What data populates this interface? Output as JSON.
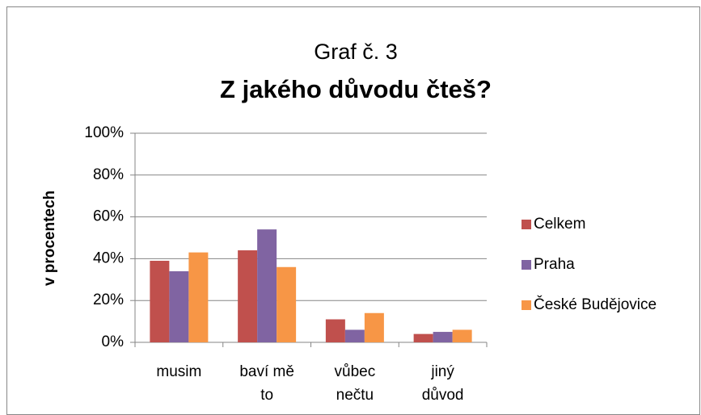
{
  "chart_data": {
    "type": "bar",
    "title": "Graf č. 3",
    "subtitle": "Z jakého důvodu čteš?",
    "y_label": "v procentech",
    "categories": [
      "musim",
      "baví mě to",
      "vůbec nečtu",
      "jiný důvod"
    ],
    "series": [
      {
        "name": "Celkem",
        "color": "#c0504d",
        "values": [
          39,
          44,
          11,
          4
        ]
      },
      {
        "name": "Praha",
        "color": "#8064a2",
        "values": [
          34,
          54,
          6,
          5
        ]
      },
      {
        "name": "České Budějovice",
        "color": "#f79646",
        "values": [
          43,
          36,
          14,
          6
        ]
      }
    ],
    "ylim": [
      0,
      100
    ],
    "yticks": [
      {
        "value": 0,
        "label": "0%"
      },
      {
        "value": 20,
        "label": "20%"
      },
      {
        "value": 40,
        "label": "40%"
      },
      {
        "value": 60,
        "label": "60%"
      },
      {
        "value": 80,
        "label": "80%"
      },
      {
        "value": 100,
        "label": "100%"
      }
    ],
    "grid": true,
    "legend": "right"
  }
}
